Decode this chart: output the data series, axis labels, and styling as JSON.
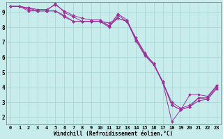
{
  "title": "",
  "xlabel": "Windchill (Refroidissement éolien,°C)",
  "background_color": "#c8ecec",
  "grid_color": "#a8d8d8",
  "line_color": "#993399",
  "marker_color": "#993399",
  "xlim": [
    -0.5,
    23.5
  ],
  "ylim": [
    1.5,
    9.7
  ],
  "yticks": [
    2,
    3,
    4,
    5,
    6,
    7,
    8,
    9
  ],
  "xticks": [
    0,
    1,
    2,
    3,
    4,
    5,
    6,
    7,
    8,
    9,
    10,
    11,
    12,
    13,
    14,
    15,
    16,
    17,
    18,
    19,
    20,
    21,
    22,
    23
  ],
  "series": [
    [
      9.4,
      9.4,
      9.3,
      9.2,
      9.2,
      9.5,
      9.1,
      8.8,
      8.6,
      8.5,
      8.5,
      8.1,
      8.9,
      8.5,
      7.2,
      6.2,
      5.5,
      4.3,
      3.0,
      2.6,
      2.8,
      3.3,
      3.3,
      4.1
    ],
    [
      9.4,
      9.4,
      9.2,
      9.1,
      9.1,
      9.1,
      8.7,
      8.4,
      8.4,
      8.4,
      8.4,
      8.3,
      8.6,
      8.4,
      7.1,
      6.1,
      5.5,
      4.4,
      2.8,
      2.5,
      2.7,
      3.1,
      3.2,
      3.9
    ],
    [
      9.4,
      9.4,
      9.1,
      9.1,
      9.1,
      9.6,
      9.0,
      8.7,
      8.4,
      8.4,
      8.4,
      8.0,
      8.8,
      8.4,
      7.3,
      6.3,
      5.5,
      4.3,
      2.8,
      2.5,
      3.5,
      3.5,
      3.4,
      4.1
    ],
    [
      9.4,
      9.4,
      9.3,
      9.1,
      9.1,
      9.1,
      8.8,
      8.4,
      8.4,
      8.4,
      8.4,
      8.1,
      8.6,
      8.4,
      7.2,
      6.2,
      5.6,
      4.3,
      1.7,
      2.5,
      2.7,
      3.3,
      3.2,
      4.0
    ]
  ]
}
